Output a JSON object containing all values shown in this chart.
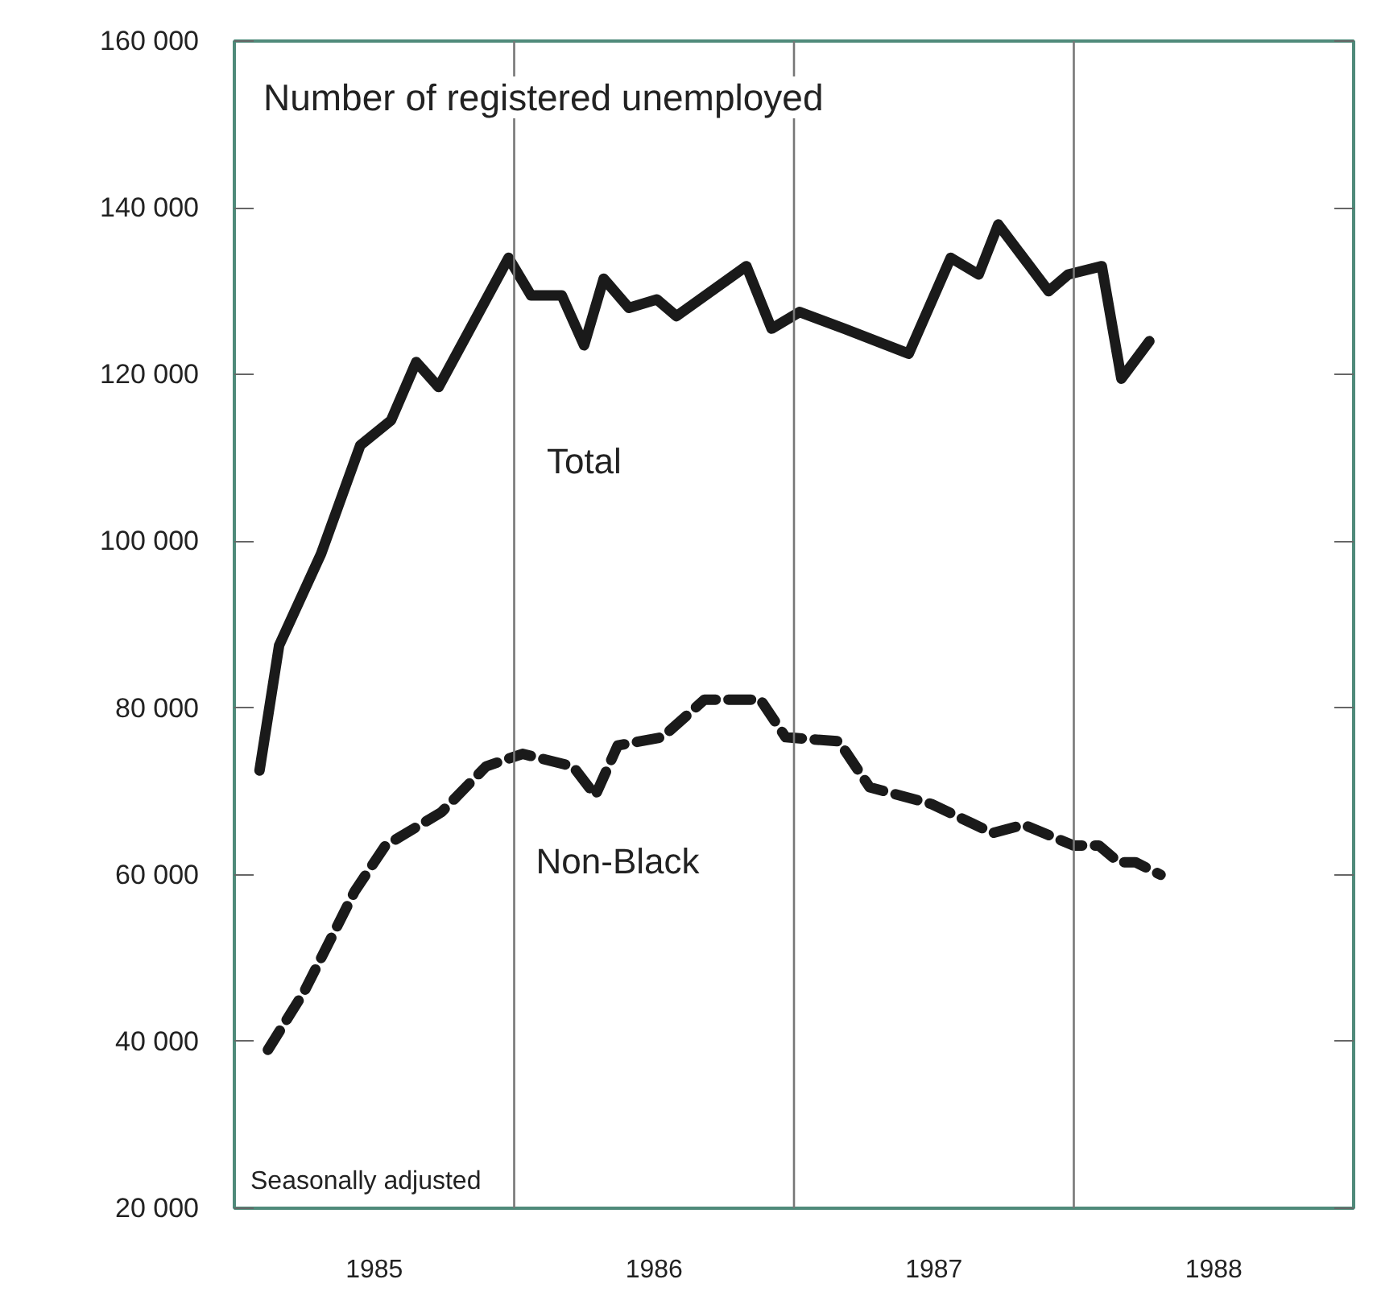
{
  "chart_data": {
    "type": "line",
    "title": "Number of registered unemployed",
    "annotations": [
      "Seasonally adjusted"
    ],
    "xlim": [
      1985,
      1989
    ],
    "ylim": [
      20000,
      160000
    ],
    "xticks": [
      {
        "value": 1985.5,
        "label": "1985"
      },
      {
        "value": 1986.5,
        "label": "1986"
      },
      {
        "value": 1987.5,
        "label": "1987"
      },
      {
        "value": 1988.5,
        "label": "1988"
      }
    ],
    "yticks": [
      {
        "value": 20000,
        "label": "20 000"
      },
      {
        "value": 40000,
        "label": "40 000"
      },
      {
        "value": 60000,
        "label": "60 000"
      },
      {
        "value": 80000,
        "label": "80 000"
      },
      {
        "value": 100000,
        "label": "100 000"
      },
      {
        "value": 120000,
        "label": "120 000"
      },
      {
        "value": 140000,
        "label": "140 000"
      },
      {
        "value": 160000,
        "label": "160 000"
      }
    ],
    "ref_lines": [
      {
        "axis": "x",
        "value": 1986,
        "label": null,
        "color": "#777777"
      },
      {
        "axis": "x",
        "value": 1987,
        "label": null,
        "color": "#777777"
      },
      {
        "axis": "x",
        "value": 1988,
        "label": null,
        "color": "#777777"
      }
    ],
    "grid": false,
    "legend": false,
    "marker": "none",
    "series": [
      {
        "name": "Total",
        "color": "#1a1a1a",
        "line_style": "solid",
        "x": [
          1985.09,
          1985.16,
          1985.31,
          1985.38,
          1985.45,
          1985.56,
          1985.65,
          1985.73,
          1985.98,
          1986.06,
          1986.17,
          1986.25,
          1986.32,
          1986.41,
          1986.51,
          1986.58,
          1986.83,
          1986.92,
          1987.02,
          1987.18,
          1987.41,
          1987.56,
          1987.66,
          1987.73,
          1987.91,
          1987.98,
          1988.1,
          1988.17,
          1988.27
        ],
        "values": [
          72500,
          87500,
          98500,
          105000,
          111500,
          114500,
          121500,
          118500,
          134000,
          129500,
          129500,
          123500,
          131500,
          128000,
          129000,
          127000,
          133000,
          125500,
          127500,
          125500,
          122500,
          134000,
          132000,
          138000,
          130000,
          132000,
          133000,
          119500,
          124000
        ]
      },
      {
        "name": "Non-Black",
        "color": "#1a1a1a",
        "line_style": "dashed",
        "x": [
          1985.12,
          1985.25,
          1985.43,
          1985.54,
          1985.74,
          1985.9,
          1986.03,
          1986.21,
          1986.29,
          1986.37,
          1986.53,
          1986.68,
          1986.88,
          1986.97,
          1987.16,
          1987.27,
          1987.49,
          1987.71,
          1987.82,
          1988.0,
          1988.09,
          1988.16,
          1988.22,
          1988.31
        ],
        "values": [
          39000,
          46000,
          58000,
          63500,
          67500,
          73000,
          74500,
          73000,
          69500,
          75500,
          76500,
          81000,
          81000,
          76500,
          76000,
          70500,
          68500,
          65000,
          66000,
          63500,
          63500,
          61500,
          61500,
          60000
        ]
      }
    ]
  }
}
